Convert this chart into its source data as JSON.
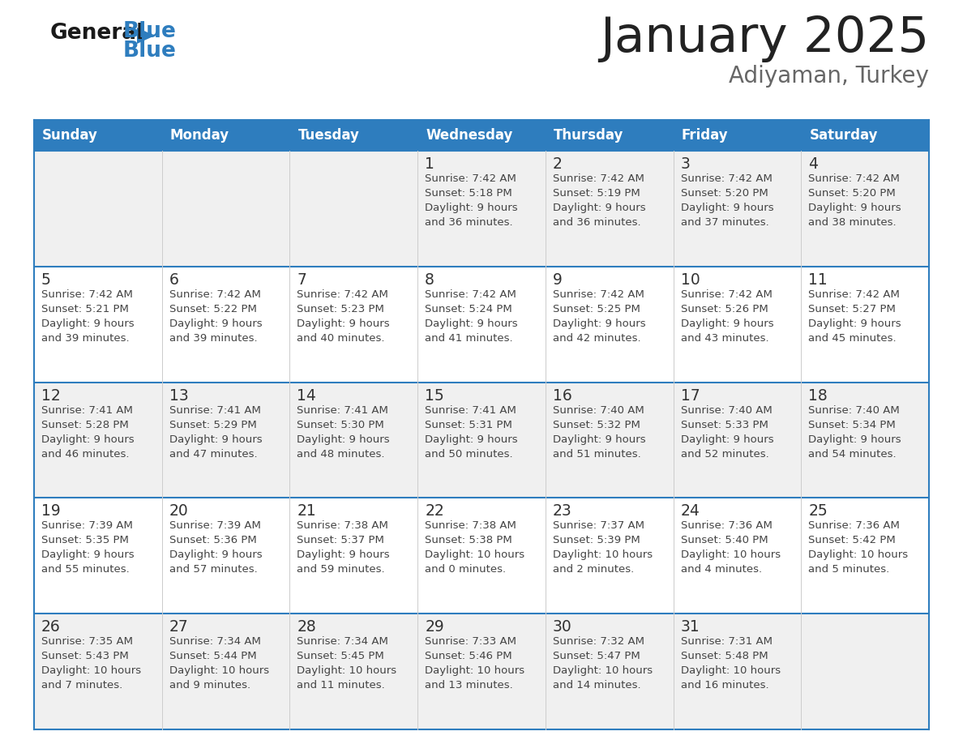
{
  "title": "January 2025",
  "subtitle": "Adiyaman, Turkey",
  "days_of_week": [
    "Sunday",
    "Monday",
    "Tuesday",
    "Wednesday",
    "Thursday",
    "Friday",
    "Saturday"
  ],
  "header_bg": "#2E7DBE",
  "header_text": "#FFFFFF",
  "row_bg_odd": "#F0F0F0",
  "row_bg_even": "#FFFFFF",
  "day_number_color": "#333333",
  "info_text_color": "#444444",
  "title_color": "#222222",
  "subtitle_color": "#666666",
  "border_color": "#2E7DBE",
  "col_line_color": "#CCCCCC",
  "calendar": [
    [
      {
        "day": null,
        "info": null
      },
      {
        "day": null,
        "info": null
      },
      {
        "day": null,
        "info": null
      },
      {
        "day": "1",
        "info": "Sunrise: 7:42 AM\nSunset: 5:18 PM\nDaylight: 9 hours\nand 36 minutes."
      },
      {
        "day": "2",
        "info": "Sunrise: 7:42 AM\nSunset: 5:19 PM\nDaylight: 9 hours\nand 36 minutes."
      },
      {
        "day": "3",
        "info": "Sunrise: 7:42 AM\nSunset: 5:20 PM\nDaylight: 9 hours\nand 37 minutes."
      },
      {
        "day": "4",
        "info": "Sunrise: 7:42 AM\nSunset: 5:20 PM\nDaylight: 9 hours\nand 38 minutes."
      }
    ],
    [
      {
        "day": "5",
        "info": "Sunrise: 7:42 AM\nSunset: 5:21 PM\nDaylight: 9 hours\nand 39 minutes."
      },
      {
        "day": "6",
        "info": "Sunrise: 7:42 AM\nSunset: 5:22 PM\nDaylight: 9 hours\nand 39 minutes."
      },
      {
        "day": "7",
        "info": "Sunrise: 7:42 AM\nSunset: 5:23 PM\nDaylight: 9 hours\nand 40 minutes."
      },
      {
        "day": "8",
        "info": "Sunrise: 7:42 AM\nSunset: 5:24 PM\nDaylight: 9 hours\nand 41 minutes."
      },
      {
        "day": "9",
        "info": "Sunrise: 7:42 AM\nSunset: 5:25 PM\nDaylight: 9 hours\nand 42 minutes."
      },
      {
        "day": "10",
        "info": "Sunrise: 7:42 AM\nSunset: 5:26 PM\nDaylight: 9 hours\nand 43 minutes."
      },
      {
        "day": "11",
        "info": "Sunrise: 7:42 AM\nSunset: 5:27 PM\nDaylight: 9 hours\nand 45 minutes."
      }
    ],
    [
      {
        "day": "12",
        "info": "Sunrise: 7:41 AM\nSunset: 5:28 PM\nDaylight: 9 hours\nand 46 minutes."
      },
      {
        "day": "13",
        "info": "Sunrise: 7:41 AM\nSunset: 5:29 PM\nDaylight: 9 hours\nand 47 minutes."
      },
      {
        "day": "14",
        "info": "Sunrise: 7:41 AM\nSunset: 5:30 PM\nDaylight: 9 hours\nand 48 minutes."
      },
      {
        "day": "15",
        "info": "Sunrise: 7:41 AM\nSunset: 5:31 PM\nDaylight: 9 hours\nand 50 minutes."
      },
      {
        "day": "16",
        "info": "Sunrise: 7:40 AM\nSunset: 5:32 PM\nDaylight: 9 hours\nand 51 minutes."
      },
      {
        "day": "17",
        "info": "Sunrise: 7:40 AM\nSunset: 5:33 PM\nDaylight: 9 hours\nand 52 minutes."
      },
      {
        "day": "18",
        "info": "Sunrise: 7:40 AM\nSunset: 5:34 PM\nDaylight: 9 hours\nand 54 minutes."
      }
    ],
    [
      {
        "day": "19",
        "info": "Sunrise: 7:39 AM\nSunset: 5:35 PM\nDaylight: 9 hours\nand 55 minutes."
      },
      {
        "day": "20",
        "info": "Sunrise: 7:39 AM\nSunset: 5:36 PM\nDaylight: 9 hours\nand 57 minutes."
      },
      {
        "day": "21",
        "info": "Sunrise: 7:38 AM\nSunset: 5:37 PM\nDaylight: 9 hours\nand 59 minutes."
      },
      {
        "day": "22",
        "info": "Sunrise: 7:38 AM\nSunset: 5:38 PM\nDaylight: 10 hours\nand 0 minutes."
      },
      {
        "day": "23",
        "info": "Sunrise: 7:37 AM\nSunset: 5:39 PM\nDaylight: 10 hours\nand 2 minutes."
      },
      {
        "day": "24",
        "info": "Sunrise: 7:36 AM\nSunset: 5:40 PM\nDaylight: 10 hours\nand 4 minutes."
      },
      {
        "day": "25",
        "info": "Sunrise: 7:36 AM\nSunset: 5:42 PM\nDaylight: 10 hours\nand 5 minutes."
      }
    ],
    [
      {
        "day": "26",
        "info": "Sunrise: 7:35 AM\nSunset: 5:43 PM\nDaylight: 10 hours\nand 7 minutes."
      },
      {
        "day": "27",
        "info": "Sunrise: 7:34 AM\nSunset: 5:44 PM\nDaylight: 10 hours\nand 9 minutes."
      },
      {
        "day": "28",
        "info": "Sunrise: 7:34 AM\nSunset: 5:45 PM\nDaylight: 10 hours\nand 11 minutes."
      },
      {
        "day": "29",
        "info": "Sunrise: 7:33 AM\nSunset: 5:46 PM\nDaylight: 10 hours\nand 13 minutes."
      },
      {
        "day": "30",
        "info": "Sunrise: 7:32 AM\nSunset: 5:47 PM\nDaylight: 10 hours\nand 14 minutes."
      },
      {
        "day": "31",
        "info": "Sunrise: 7:31 AM\nSunset: 5:48 PM\nDaylight: 10 hours\nand 16 minutes."
      },
      {
        "day": null,
        "info": null
      }
    ]
  ],
  "fig_width": 11.88,
  "fig_height": 9.18,
  "dpi": 100
}
